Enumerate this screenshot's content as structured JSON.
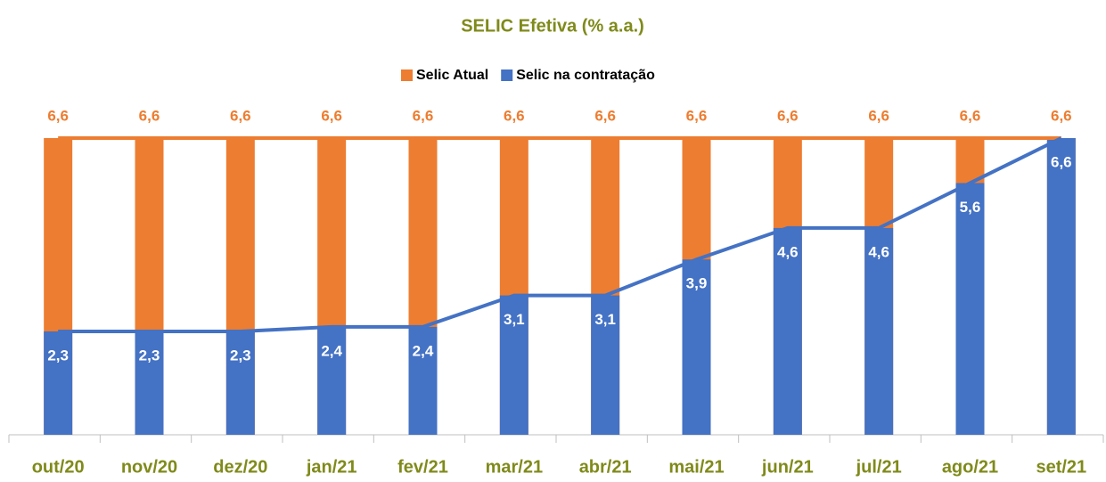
{
  "chart_data": {
    "type": "bar",
    "overlap": true,
    "lines": true,
    "title": "SELIC Efetiva (% a.a.)",
    "categories": [
      "out/20",
      "nov/20",
      "dez/20",
      "jan/21",
      "fev/21",
      "mar/21",
      "abr/21",
      "mai/21",
      "jun/21",
      "jul/21",
      "ago/21",
      "set/21"
    ],
    "series": [
      {
        "name": "Selic Atual",
        "color": "#ed7d31",
        "values": [
          6.6,
          6.6,
          6.6,
          6.6,
          6.6,
          6.6,
          6.6,
          6.6,
          6.6,
          6.6,
          6.6,
          6.6
        ],
        "value_labels": [
          "6,6",
          "6,6",
          "6,6",
          "6,6",
          "6,6",
          "6,6",
          "6,6",
          "6,6",
          "6,6",
          "6,6",
          "6,6",
          "6,6"
        ]
      },
      {
        "name": "Selic na contratação",
        "color": "#4472c4",
        "values": [
          2.3,
          2.3,
          2.3,
          2.4,
          2.4,
          3.1,
          3.1,
          3.9,
          4.6,
          4.6,
          5.6,
          6.6
        ],
        "value_labels": [
          "2,3",
          "2,3",
          "2,3",
          "2,4",
          "2,4",
          "3,1",
          "3,1",
          "3,9",
          "4,6",
          "4,6",
          "5,6",
          "6,6"
        ]
      }
    ],
    "ylim": [
      0,
      6.6
    ],
    "legend": "top"
  }
}
